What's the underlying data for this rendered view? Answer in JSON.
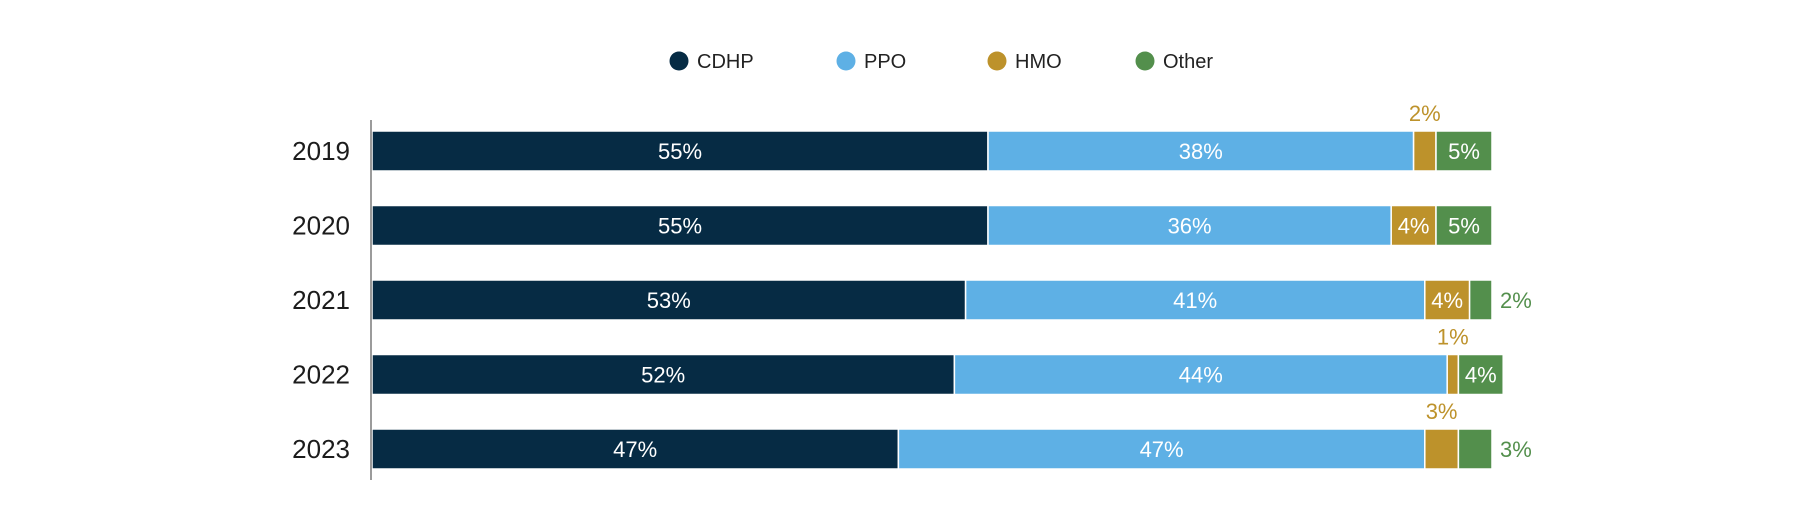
{
  "chart_data": {
    "type": "bar",
    "orientation": "horizontal",
    "stacked": true,
    "categories": [
      "2019",
      "2020",
      "2021",
      "2022",
      "2023"
    ],
    "series": [
      {
        "name": "CDHP",
        "color": "#062b44",
        "values": [
          55,
          55,
          53,
          52,
          47
        ]
      },
      {
        "name": "PPO",
        "color": "#5eb0e5",
        "values": [
          38,
          36,
          41,
          44,
          47
        ]
      },
      {
        "name": "HMO",
        "color": "#bd922b",
        "values": [
          2,
          4,
          4,
          1,
          3
        ]
      },
      {
        "name": "Other",
        "color": "#538f4c",
        "values": [
          5,
          5,
          2,
          4,
          3
        ]
      }
    ],
    "value_suffix": "%",
    "xlim": [
      0,
      100
    ],
    "legend_position": "top-center",
    "grid": false
  }
}
